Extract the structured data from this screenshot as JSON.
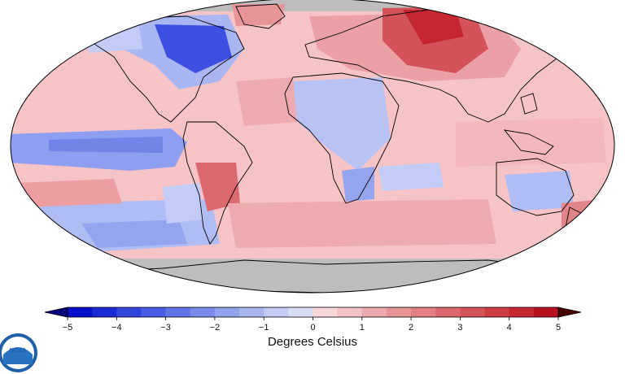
{
  "map": {
    "projection": "robinson",
    "land_outline_color": "#000000",
    "no_data_color": "#bdbdbd"
  },
  "colorbar": {
    "min": -5,
    "max": 5,
    "step": 0.5,
    "ticks": [
      "−5",
      "−4",
      "−3",
      "−2",
      "−1",
      "0",
      "1",
      "2",
      "3",
      "4",
      "5"
    ],
    "tick_values": [
      -5,
      -4,
      -3,
      -2,
      -1,
      0,
      1,
      2,
      3,
      4,
      5
    ],
    "colors": [
      "#0510c8",
      "#1a2bd6",
      "#3344dc",
      "#4a5ce2",
      "#6274e6",
      "#7a8bea",
      "#94a2ee",
      "#aab6f2",
      "#c2ccf6",
      "#d8def9",
      "#fad7d9",
      "#f4c1c4",
      "#eeabaf",
      "#e8959a",
      "#e27f85",
      "#dc6970",
      "#d4535b",
      "#cc3d46",
      "#c42731",
      "#b8121e"
    ],
    "under_color": "#00007a",
    "over_color": "#4a0000",
    "label": "Degrees Celsius"
  },
  "logo": {
    "name": "noaa-logo",
    "text": "NOAA"
  }
}
